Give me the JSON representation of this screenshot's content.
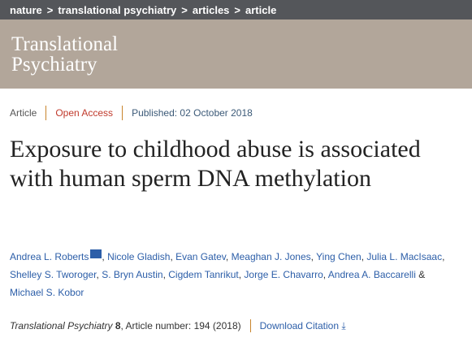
{
  "breadcrumb": [
    "nature",
    "translational psychiatry",
    "articles",
    "article"
  ],
  "breadcrumb_sep": ">",
  "journal_logo": {
    "line1": "Translational",
    "line2": "Psychiatry"
  },
  "meta": {
    "type": "Article",
    "access": "Open Access",
    "published": "Published: 02 October 2018"
  },
  "title": "Exposure to childhood abuse is associated with human sperm DNA methylation",
  "authors": {
    "line1": [
      "Andrea L. Roberts",
      "Nicole Gladish",
      "Evan Gatev",
      "Meaghan J. Jones",
      "Ying Chen",
      "Julia L. MacIsaac"
    ],
    "line2": [
      "Shelley S. Tworoger",
      "S. Bryn Austin",
      "Cigdem Tanrikut",
      "Jorge E. Chavarro",
      "Andrea A. Baccarelli"
    ],
    "and": "&",
    "last": "Michael S. Kobor"
  },
  "citation": {
    "journal": "Translational Psychiatry",
    "volume": "8",
    "rest": ", Article number: 194 (2018)",
    "download": "Download Citation",
    "download_icon": "⤓"
  }
}
